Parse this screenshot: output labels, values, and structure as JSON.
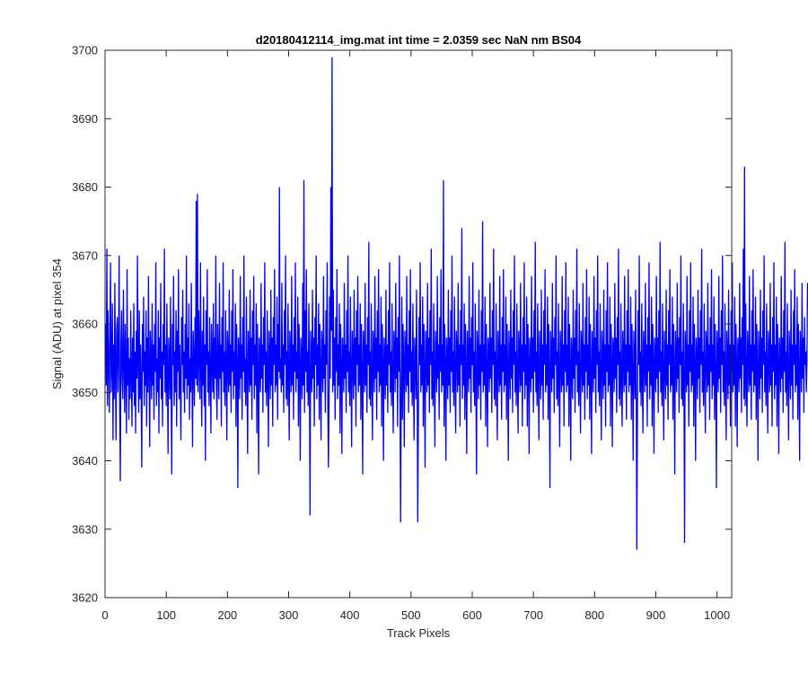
{
  "chart_data": {
    "type": "line",
    "title": "d20180412114_img.mat int time = 2.0359 sec  NaN nm BS04",
    "xlabel": "Track Pixels",
    "ylabel": "Signal (ADU) at pixel 354",
    "xlim": [
      0,
      1024
    ],
    "ylim": [
      3620,
      3700
    ],
    "xticks": [
      0,
      100,
      200,
      300,
      400,
      500,
      600,
      700,
      800,
      900,
      1000
    ],
    "yticks": [
      3620,
      3630,
      3640,
      3650,
      3660,
      3670,
      3680,
      3690,
      3700
    ],
    "grid": false,
    "series": [
      {
        "color": "#0000ff",
        "x_start": 1,
        "x_step": 1,
        "y": [
          3660,
          3651,
          3671,
          3648,
          3662,
          3655,
          3647,
          3658,
          3669,
          3650,
          3654,
          3663,
          3643,
          3657,
          3649,
          3666,
          3653,
          3643,
          3659,
          3661,
          3650,
          3655,
          3670,
          3648,
          3637,
          3657,
          3662,
          3652,
          3649,
          3665,
          3655,
          3647,
          3660,
          3653,
          3644,
          3668,
          3651,
          3658,
          3646,
          3655,
          3649,
          3662,
          3653,
          3645,
          3658,
          3650,
          3663,
          3648,
          3656,
          3644,
          3659,
          3652,
          3670,
          3654,
          3647,
          3662,
          3649,
          3657,
          3651,
          3639,
          3660,
          3653,
          3664,
          3648,
          3656,
          3651,
          3662,
          3645,
          3658,
          3650,
          3667,
          3653,
          3642,
          3659,
          3655,
          3649,
          3663,
          3651,
          3657,
          3646,
          3660,
          3653,
          3669,
          3648,
          3655,
          3650,
          3662,
          3644,
          3658,
          3652,
          3666,
          3649,
          3656,
          3645,
          3660,
          3654,
          3671,
          3650,
          3657,
          3648,
          3663,
          3652,
          3641,
          3658,
          3655,
          3649,
          3664,
          3651,
          3638,
          3660,
          3654,
          3667,
          3648,
          3656,
          3650,
          3662,
          3645,
          3659,
          3653,
          3668,
          3649,
          3657,
          3651,
          3643,
          3661,
          3654,
          3665,
          3650,
          3656,
          3647,
          3660,
          3652,
          3670,
          3649,
          3658,
          3651,
          3663,
          3646,
          3655,
          3650,
          3666,
          3653,
          3642,
          3659,
          3655,
          3648,
          3661,
          3652,
          3678,
          3651,
          3679,
          3650,
          3662,
          3656,
          3649,
          3669,
          3653,
          3645,
          3659,
          3651,
          3664,
          3648,
          3657,
          3640,
          3662,
          3654,
          3668,
          3650,
          3656,
          3648,
          3661,
          3653,
          3644,
          3660,
          3655,
          3650,
          3663,
          3649,
          3658,
          3652,
          3670,
          3651,
          3646,
          3660,
          3654,
          3649,
          3666,
          3652,
          3657,
          3645,
          3661,
          3653,
          3669,
          3650,
          3656,
          3648,
          3662,
          3654,
          3643,
          3659,
          3655,
          3650,
          3665,
          3651,
          3657,
          3647,
          3662,
          3653,
          3668,
          3649,
          3656,
          3651,
          3663,
          3645,
          3660,
          3654,
          3636,
          3658,
          3655,
          3649,
          3667,
          3652,
          3657,
          3646,
          3661,
          3653,
          3670,
          3650,
          3655,
          3648,
          3664,
          3652,
          3641,
          3659,
          3656,
          3650,
          3665,
          3651,
          3658,
          3646,
          3662,
          3654,
          3667,
          3649,
          3657,
          3651,
          3663,
          3644,
          3660,
          3653,
          3638,
          3658,
          3655,
          3650,
          3666,
          3652,
          3657,
          3647,
          3661,
          3654,
          3669,
          3650,
          3656,
          3648,
          3662,
          3653,
          3642,
          3659,
          3655,
          3649,
          3665,
          3651,
          3658,
          3645,
          3661,
          3654,
          3668,
          3650,
          3657,
          3651,
          3664,
          3646,
          3660,
          3653,
          3680,
          3652,
          3655,
          3650,
          3666,
          3651,
          3657,
          3647,
          3662,
          3654,
          3670,
          3649,
          3656,
          3648,
          3663,
          3652,
          3643,
          3659,
          3655,
          3650,
          3667,
          3651,
          3657,
          3646,
          3661,
          3653,
          3669,
          3650,
          3656,
          3652,
          3664,
          3645,
          3660,
          3654,
          3640,
          3658,
          3655,
          3649,
          3666,
          3651,
          3681,
          3647,
          3662,
          3653,
          3668,
          3650,
          3656,
          3648,
          3663,
          3652,
          3632,
          3659,
          3655,
          3650,
          3665,
          3652,
          3658,
          3645,
          3661,
          3654,
          3670,
          3649,
          3657,
          3651,
          3663,
          3646,
          3660,
          3653,
          3643,
          3659,
          3656,
          3650,
          3667,
          3652,
          3657,
          3647,
          3662,
          3654,
          3669,
          3650,
          3639,
          3648,
          3664,
          3652,
          3680,
          3659,
          3699,
          3650,
          3665,
          3651,
          3658,
          3646,
          3661,
          3653,
          3668,
          3649,
          3657,
          3651,
          3663,
          3644,
          3660,
          3654,
          3641,
          3658,
          3655,
          3650,
          3666,
          3652,
          3657,
          3647,
          3662,
          3653,
          3670,
          3650,
          3656,
          3648,
          3664,
          3652,
          3642,
          3659,
          3655,
          3649,
          3665,
          3651,
          3658,
          3645,
          3662,
          3654,
          3667,
          3650,
          3657,
          3651,
          3663,
          3646,
          3660,
          3653,
          3638,
          3659,
          3656,
          3650,
          3666,
          3651,
          3657,
          3647,
          3661,
          3654,
          3672,
          3649,
          3656,
          3648,
          3663,
          3652,
          3643,
          3659,
          3655,
          3650,
          3667,
          3652,
          3658,
          3646,
          3662,
          3653,
          3668,
          3650,
          3657,
          3651,
          3664,
          3645,
          3660,
          3654,
          3640,
          3658,
          3655,
          3649,
          3665,
          3651,
          3657,
          3647,
          3662,
          3654,
          3669,
          3650,
          3656,
          3648,
          3663,
          3652,
          3644,
          3659,
          3656,
          3650,
          3666,
          3652,
          3658,
          3645,
          3661,
          3653,
          3670,
          3649,
          3631,
          3651,
          3664,
          3646,
          3660,
          3654,
          3642,
          3659,
          3655,
          3650,
          3667,
          3651,
          3657,
          3647,
          3662,
          3653,
          3668,
          3650,
          3656,
          3648,
          3663,
          3652,
          3643,
          3658,
          3655,
          3649,
          3665,
          3652,
          3631,
          3646,
          3661,
          3654,
          3669,
          3650,
          3657,
          3651,
          3664,
          3645,
          3660,
          3653,
          3639,
          3659,
          3656,
          3650,
          3666,
          3651,
          3658,
          3647,
          3662,
          3654,
          3671,
          3649,
          3656,
          3648,
          3663,
          3652,
          3642,
          3659,
          3655,
          3650,
          3667,
          3652,
          3657,
          3646,
          3661,
          3653,
          3668,
          3650,
          3657,
          3651,
          3681,
          3645,
          3660,
          3654,
          3640,
          3658,
          3655,
          3649,
          3665,
          3651,
          3658,
          3647,
          3662,
          3653,
          3670,
          3650,
          3656,
          3648,
          3664,
          3652,
          3644,
          3659,
          3656,
          3650,
          3666,
          3651,
          3657,
          3645,
          3662,
          3654,
          3674,
          3649,
          3657,
          3651,
          3663,
          3646,
          3660,
          3653,
          3641,
          3659,
          3655,
          3650,
          3667,
          3652,
          3658,
          3647,
          3661,
          3654,
          3669,
          3650,
          3656,
          3648,
          3663,
          3652,
          3638,
          3659,
          3655,
          3649,
          3665,
          3651,
          3657,
          3646,
          3662,
          3653,
          3675,
          3650,
          3657,
          3651,
          3664,
          3645,
          3660,
          3654,
          3642,
          3658,
          3656,
          3650,
          3666,
          3652,
          3658,
          3647,
          3662,
          3654,
          3671,
          3649,
          3656,
          3648,
          3663,
          3652,
          3643,
          3659,
          3655,
          3650,
          3667,
          3651,
          3657,
          3646,
          3661,
          3653,
          3668,
          3650,
          3657,
          3651,
          3664,
          3646,
          3660,
          3653,
          3640,
          3659,
          3655,
          3649,
          3665,
          3652,
          3658,
          3647,
          3662,
          3654,
          3670,
          3650,
          3656,
          3648,
          3663,
          3652,
          3644,
          3659,
          3656,
          3650,
          3666,
          3651,
          3657,
          3645,
          3661,
          3653,
          3669,
          3649,
          3657,
          3651,
          3664,
          3645,
          3660,
          3654,
          3641,
          3658,
          3655,
          3650,
          3667,
          3652,
          3658,
          3647,
          3662,
          3653,
          3672,
          3650,
          3656,
          3648,
          3663,
          3652,
          3643,
          3659,
          3655,
          3649,
          3665,
          3651,
          3657,
          3646,
          3662,
          3654,
          3668,
          3650,
          3657,
          3651,
          3664,
          3646,
          3660,
          3653,
          3636,
          3659,
          3656,
          3650,
          3666,
          3652,
          3658,
          3647,
          3661,
          3654,
          3670,
          3649,
          3656,
          3648,
          3663,
          3652,
          3642,
          3659,
          3655,
          3650,
          3667,
          3651,
          3657,
          3645,
          3662,
          3653,
          3669,
          3650,
          3657,
          3651,
          3664,
          3645,
          3660,
          3654,
          3640,
          3658,
          3655,
          3649,
          3665,
          3652,
          3658,
          3647,
          3662,
          3654,
          3671,
          3650,
          3656,
          3648,
          3663,
          3652,
          3644,
          3659,
          3656,
          3650,
          3666,
          3651,
          3657,
          3646,
          3661,
          3653,
          3668,
          3649,
          3657,
          3651,
          3664,
          3646,
          3660,
          3653,
          3641,
          3659,
          3655,
          3650,
          3667,
          3652,
          3658,
          3647,
          3662,
          3654,
          3670,
          3650,
          3656,
          3648,
          3663,
          3652,
          3643,
          3659,
          3655,
          3649,
          3665,
          3651,
          3657,
          3645,
          3662,
          3653,
          3669,
          3650,
          3657,
          3651,
          3664,
          3645,
          3660,
          3654,
          3642,
          3658,
          3656,
          3650,
          3666,
          3652,
          3658,
          3647,
          3661,
          3654,
          3671,
          3649,
          3656,
          3648,
          3663,
          3652,
          3645,
          3659,
          3655,
          3650,
          3667,
          3651,
          3657,
          3646,
          3662,
          3653,
          3668,
          3650,
          3657,
          3651,
          3664,
          3646,
          3660,
          3653,
          3640,
          3659,
          3655,
          3649,
          3665,
          3652,
          3627,
          3647,
          3662,
          3654,
          3670,
          3650,
          3656,
          3648,
          3663,
          3652,
          3644,
          3659,
          3656,
          3650,
          3666,
          3651,
          3657,
          3645,
          3661,
          3653,
          3669,
          3649,
          3657,
          3651,
          3664,
          3645,
          3660,
          3654,
          3641,
          3658,
          3655,
          3650,
          3667,
          3652,
          3658,
          3647,
          3662,
          3653,
          3672,
          3650,
          3656,
          3648,
          3663,
          3652,
          3643,
          3659,
          3655,
          3649,
          3665,
          3651,
          3657,
          3646,
          3662,
          3654,
          3668,
          3650,
          3657,
          3651,
          3664,
          3646,
          3660,
          3653,
          3638,
          3659,
          3656,
          3650,
          3666,
          3652,
          3658,
          3647,
          3661,
          3654,
          3670,
          3649,
          3656,
          3648,
          3663,
          3652,
          3628,
          3659,
          3655,
          3650,
          3667,
          3651,
          3657,
          3645,
          3662,
          3653,
          3669,
          3650,
          3657,
          3651,
          3664,
          3645,
          3660,
          3654,
          3640,
          3658,
          3655,
          3649,
          3665,
          3652,
          3658,
          3647,
          3662,
          3654,
          3671,
          3650,
          3656,
          3648,
          3663,
          3652,
          3644,
          3659,
          3656,
          3650,
          3666,
          3651,
          3657,
          3646,
          3661,
          3653,
          3668,
          3649,
          3657,
          3651,
          3664,
          3646,
          3660,
          3653,
          3636,
          3659,
          3655,
          3650,
          3667,
          3652,
          3658,
          3647,
          3662,
          3654,
          3670,
          3650,
          3656,
          3648,
          3663,
          3652,
          3643,
          3659,
          3655,
          3649,
          3665,
          3651,
          3657,
          3645,
          3662,
          3653,
          3669,
          3650,
          3657,
          3651,
          3664,
          3645,
          3660,
          3654,
          3642,
          3658,
          3656,
          3650,
          3666,
          3652,
          3658,
          3647,
          3661,
          3654,
          3671,
          3649,
          3683,
          3648,
          3663,
          3652,
          3645,
          3659,
          3655,
          3650,
          3667,
          3651,
          3657,
          3646,
          3662,
          3653,
          3668,
          3650,
          3657,
          3651,
          3664,
          3646,
          3660,
          3653,
          3640,
          3659,
          3655,
          3649,
          3665,
          3652,
          3658,
          3647,
          3662,
          3654,
          3670,
          3650,
          3656,
          3648,
          3663,
          3652,
          3644,
          3659,
          3656,
          3650,
          3666,
          3651,
          3657,
          3645,
          3661,
          3653,
          3669,
          3649,
          3657,
          3651,
          3664,
          3645,
          3660,
          3654,
          3641,
          3658,
          3655,
          3650,
          3667,
          3652,
          3658,
          3647,
          3662,
          3653,
          3672,
          3650,
          3656,
          3648,
          3663,
          3652,
          3643,
          3659,
          3655,
          3649,
          3665,
          3651,
          3657,
          3646,
          3662,
          3654,
          3668,
          3650,
          3657,
          3651,
          3664,
          3646,
          3660,
          3653,
          3640,
          3659,
          3656,
          3650,
          3666,
          3652,
          3658,
          3647,
          3661,
          3654,
          3656,
          3650,
          3655,
          3666
        ]
      }
    ]
  }
}
